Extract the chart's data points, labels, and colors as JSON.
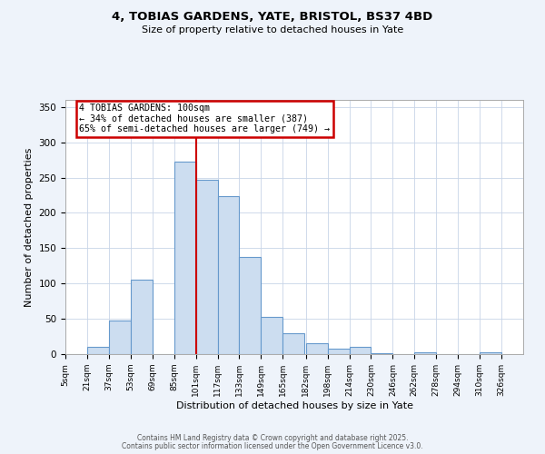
{
  "title_line1": "4, TOBIAS GARDENS, YATE, BRISTOL, BS37 4BD",
  "title_line2": "Size of property relative to detached houses in Yate",
  "xlabel": "Distribution of detached houses by size in Yate",
  "ylabel": "Number of detached properties",
  "bin_labels": [
    "5sqm",
    "21sqm",
    "37sqm",
    "53sqm",
    "69sqm",
    "85sqm",
    "101sqm",
    "117sqm",
    "133sqm",
    "149sqm",
    "165sqm",
    "182sqm",
    "198sqm",
    "214sqm",
    "230sqm",
    "246sqm",
    "262sqm",
    "278sqm",
    "294sqm",
    "310sqm",
    "326sqm"
  ],
  "bar_values": [
    0,
    10,
    47,
    105,
    0,
    273,
    247,
    224,
    137,
    53,
    30,
    16,
    8,
    10,
    1,
    0,
    2,
    0,
    0,
    3
  ],
  "bin_edges": [
    5,
    21,
    37,
    53,
    69,
    85,
    101,
    117,
    133,
    149,
    165,
    182,
    198,
    214,
    230,
    246,
    262,
    278,
    294,
    310,
    326
  ],
  "bar_color": "#ccddf0",
  "bar_edge_color": "#6699cc",
  "vline_x": 101,
  "vline_color": "#cc0000",
  "annotation_title": "4 TOBIAS GARDENS: 100sqm",
  "annotation_line1": "← 34% of detached houses are smaller (387)",
  "annotation_line2": "65% of semi-detached houses are larger (749) →",
  "annotation_box_facecolor": "#ffffff",
  "annotation_box_edgecolor": "#cc0000",
  "ylim": [
    0,
    360
  ],
  "yticks": [
    0,
    50,
    100,
    150,
    200,
    250,
    300,
    350
  ],
  "footer_line1": "Contains HM Land Registry data © Crown copyright and database right 2025.",
  "footer_line2": "Contains public sector information licensed under the Open Government Licence v3.0.",
  "bg_color": "#eef3fa",
  "plot_bg_color": "#ffffff",
  "grid_color": "#c8d4e8"
}
